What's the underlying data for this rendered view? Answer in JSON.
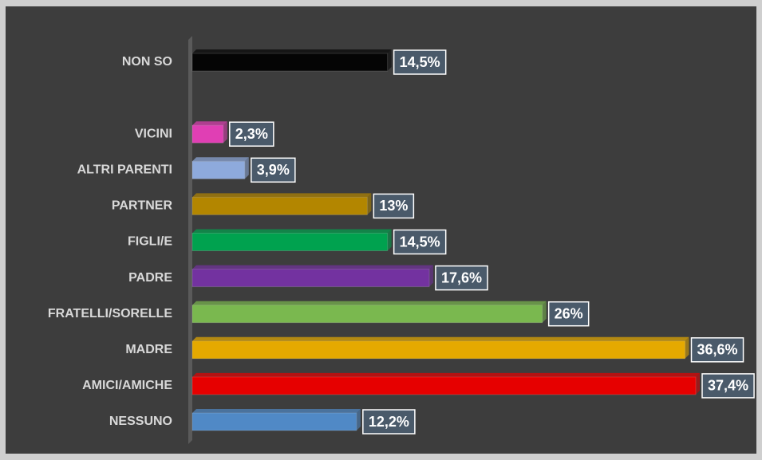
{
  "chart_data": {
    "type": "bar",
    "orientation": "horizontal",
    "categories": [
      "NON SO",
      null,
      "VICINI",
      "ALTRI PARENTI",
      "PARTNER",
      "FIGLI/E",
      "PADRE",
      "FRATELLI/SORELLE",
      "MADRE",
      "AMICI/AMICHE",
      "NESSUNO"
    ],
    "values": [
      14.5,
      null,
      2.3,
      3.9,
      13,
      14.5,
      17.6,
      26,
      36.6,
      37.4,
      12.2
    ],
    "value_labels": [
      "14,5%",
      null,
      "2,3%",
      "3,9%",
      "13%",
      "14,5%",
      "17,6%",
      "26%",
      "36,6%",
      "37,4%",
      "12,2%"
    ],
    "colors": [
      "#050505",
      null,
      "#e03fb4",
      "#8eaadc",
      "#b38600",
      "#00a24f",
      "#7332a0",
      "#7ab84f",
      "#e5a900",
      "#e60000",
      "#5089c6"
    ]
  }
}
